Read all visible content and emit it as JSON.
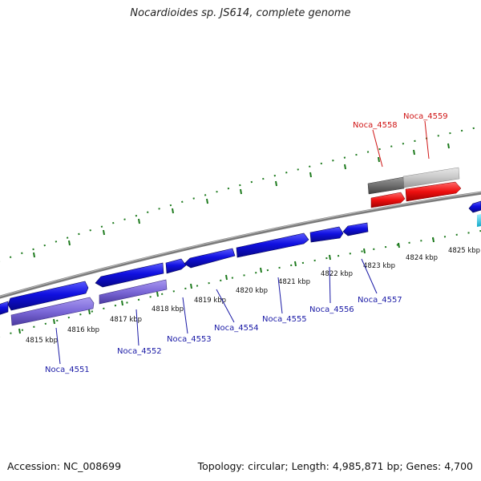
{
  "title": "Nocardioides sp. JS614, complete genome",
  "footer": {
    "accession": "Accession: NC_008699",
    "summary": "Topology: circular; Length: 4,985,871 bp; Genes: 4,700"
  },
  "colors": {
    "backbone": "#888888",
    "ticks": "#1d7a1d",
    "gene_blue": "#1010e0",
    "gene_purple": "#7b68d8",
    "gene_red": "#ee1010",
    "gene_darkgray": "#6e6e6e",
    "gene_lightgray": "#c8c8c8",
    "gene_cyan": "#22c8e0",
    "label_blue": "#1a1aa6",
    "label_red": "#d01515"
  },
  "scale_labels": [
    "4815 kbp",
    "4816 kbp",
    "4817 kbp",
    "4818 kbp",
    "4819 kbp",
    "4820 kbp",
    "4821 kbp",
    "4822 kbp",
    "4823 kbp",
    "4824 kbp",
    "4825 kbp"
  ],
  "gene_labels_bottom": [
    "Noca_4551",
    "Noca_4552",
    "Noca_4553",
    "Noca_4554",
    "Noca_4555",
    "Noca_4556",
    "Noca_4557"
  ],
  "gene_labels_top": [
    "Noca_4558",
    "Noca_4559"
  ]
}
